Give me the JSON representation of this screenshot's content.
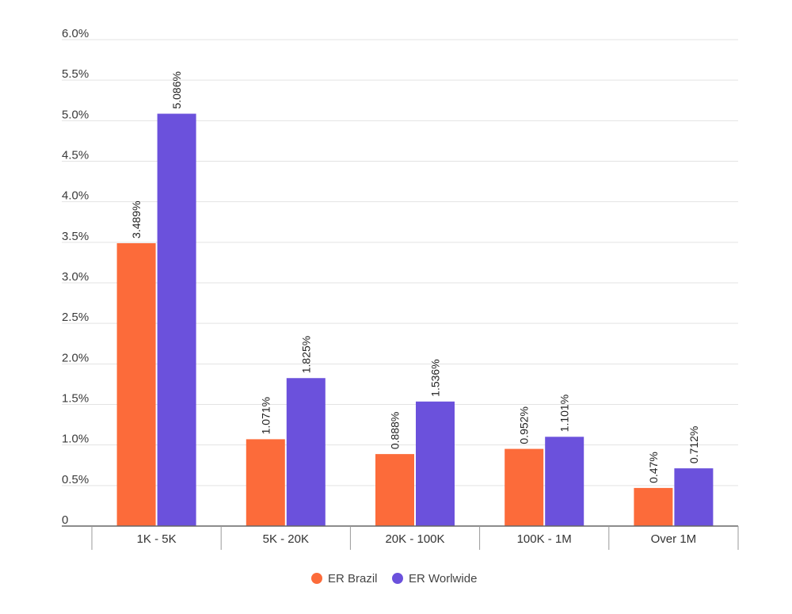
{
  "chart_data": {
    "type": "bar",
    "categories": [
      "1K - 5K",
      "5K - 20K",
      "20K - 100K",
      "100K - 1M",
      "Over 1M"
    ],
    "series": [
      {
        "name": "ER Brazil",
        "color": "#fc6b3a",
        "values": [
          3.489,
          1.071,
          0.888,
          0.952,
          0.47
        ],
        "labels": [
          "3.489%",
          "1.071%",
          "0.888%",
          "0.952%",
          "0.47%"
        ]
      },
      {
        "name": "ER Worlwide",
        "color": "#6b51dc",
        "values": [
          5.086,
          1.825,
          1.536,
          1.101,
          0.712
        ],
        "labels": [
          "5.086%",
          "1.825%",
          "1.536%",
          "1.101%",
          "0.712%"
        ]
      }
    ],
    "yticks": [
      0,
      0.5,
      1.0,
      1.5,
      2.0,
      2.5,
      3.0,
      3.5,
      4.0,
      4.5,
      5.0,
      5.5,
      6.0
    ],
    "ytick_labels": [
      "0",
      "0.5%",
      "1.0%",
      "1.5%",
      "2.0%",
      "2.5%",
      "3.0%",
      "3.5%",
      "4.0%",
      "4.5%",
      "5.0%",
      "5.5%",
      "6.0%"
    ],
    "ylim": [
      0,
      6.0
    ],
    "grid": true,
    "legend_position": "bottom-center",
    "title": "",
    "xlabel": "",
    "ylabel": ""
  }
}
